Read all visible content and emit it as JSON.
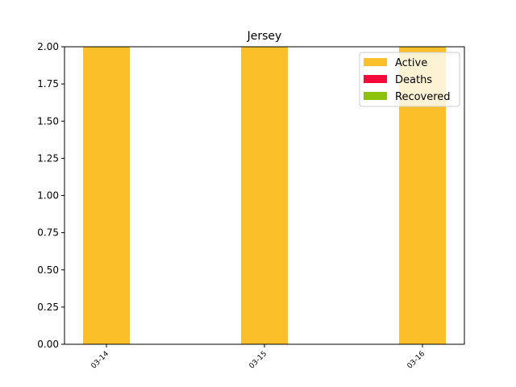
{
  "chart_data": {
    "type": "bar",
    "title": "Jersey",
    "xlabel": "",
    "ylabel": "",
    "categories": [
      "03-14",
      "03-15",
      "03-16"
    ],
    "series": [
      {
        "name": "Active",
        "color": "#fbbf2a",
        "values": [
          2,
          2,
          2
        ]
      },
      {
        "name": "Deaths",
        "color": "#f4093a",
        "values": [
          0,
          0,
          0
        ]
      },
      {
        "name": "Recovered",
        "color": "#8dc20c",
        "values": [
          0,
          0,
          0
        ]
      }
    ],
    "ylim": [
      0,
      2
    ],
    "yticks": [
      "0.00",
      "0.25",
      "0.50",
      "0.75",
      "1.00",
      "1.25",
      "1.50",
      "1.75",
      "2.00"
    ],
    "stacked": true,
    "grid": false,
    "legend_position": "top-right"
  }
}
